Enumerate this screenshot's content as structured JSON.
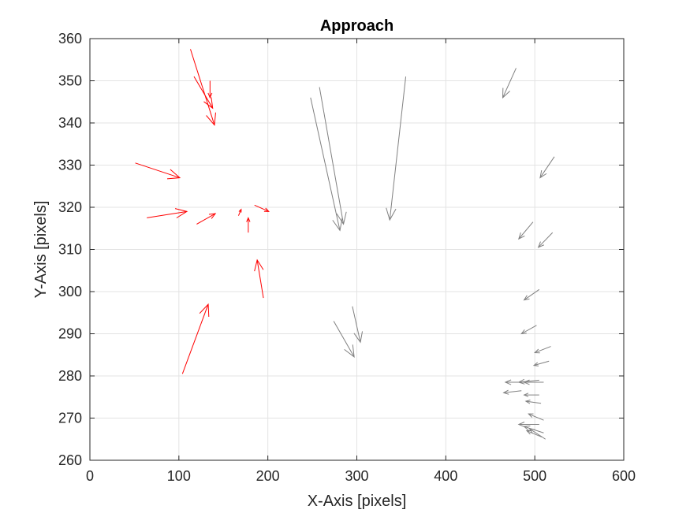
{
  "chart_data": {
    "type": "quiver",
    "title": "Approach",
    "xlabel": "X-Axis [pixels]",
    "ylabel": "Y-Axis [pixels]",
    "xlim": [
      0,
      600
    ],
    "ylim": [
      260,
      360
    ],
    "xticks": [
      "0",
      "100",
      "200",
      "300",
      "400",
      "500",
      "600"
    ],
    "yticks": [
      "260",
      "270",
      "280",
      "290",
      "300",
      "310",
      "320",
      "330",
      "340",
      "350",
      "360"
    ],
    "grid": true,
    "series": [
      {
        "color": "#ff0000",
        "vectors": [
          {
            "x1": 113,
            "y1": 357.5,
            "x2": 140,
            "y2": 339.5
          },
          {
            "x1": 117,
            "y1": 351,
            "x2": 138,
            "y2": 343.5
          },
          {
            "x1": 135,
            "y1": 350,
            "x2": 135,
            "y2": 346
          },
          {
            "x1": 51,
            "y1": 330.5,
            "x2": 101,
            "y2": 327
          },
          {
            "x1": 64,
            "y1": 317.5,
            "x2": 109,
            "y2": 319
          },
          {
            "x1": 120,
            "y1": 316,
            "x2": 141,
            "y2": 318.5
          },
          {
            "x1": 167,
            "y1": 318,
            "x2": 170,
            "y2": 319.5
          },
          {
            "x1": 178,
            "y1": 314,
            "x2": 178,
            "y2": 317.5
          },
          {
            "x1": 185,
            "y1": 320.5,
            "x2": 201,
            "y2": 319
          },
          {
            "x1": 195,
            "y1": 298.5,
            "x2": 188,
            "y2": 307.5
          },
          {
            "x1": 104,
            "y1": 280.5,
            "x2": 133,
            "y2": 297
          }
        ]
      },
      {
        "color": "#808080",
        "vectors": [
          {
            "x1": 248,
            "y1": 346,
            "x2": 281,
            "y2": 314.5
          },
          {
            "x1": 258,
            "y1": 348.5,
            "x2": 285,
            "y2": 316
          },
          {
            "x1": 355,
            "y1": 351,
            "x2": 337,
            "y2": 317
          },
          {
            "x1": 479,
            "y1": 353,
            "x2": 464,
            "y2": 346
          },
          {
            "x1": 522,
            "y1": 332,
            "x2": 506,
            "y2": 327
          },
          {
            "x1": 498,
            "y1": 316.5,
            "x2": 482,
            "y2": 312.5
          },
          {
            "x1": 520,
            "y1": 314,
            "x2": 504,
            "y2": 310.5
          },
          {
            "x1": 505,
            "y1": 300.5,
            "x2": 488,
            "y2": 298
          },
          {
            "x1": 502,
            "y1": 292,
            "x2": 485,
            "y2": 290
          },
          {
            "x1": 295,
            "y1": 296.5,
            "x2": 304,
            "y2": 288
          },
          {
            "x1": 274,
            "y1": 293,
            "x2": 297,
            "y2": 284.5
          },
          {
            "x1": 518,
            "y1": 287,
            "x2": 500,
            "y2": 285.5
          },
          {
            "x1": 516,
            "y1": 283.5,
            "x2": 499,
            "y2": 282.5
          },
          {
            "x1": 505,
            "y1": 279,
            "x2": 482,
            "y2": 278.5
          },
          {
            "x1": 490,
            "y1": 278.5,
            "x2": 467,
            "y2": 278.5
          },
          {
            "x1": 510,
            "y1": 278.5,
            "x2": 488,
            "y2": 278.5
          },
          {
            "x1": 485,
            "y1": 276.5,
            "x2": 465,
            "y2": 276
          },
          {
            "x1": 505,
            "y1": 275.5,
            "x2": 488,
            "y2": 275.5
          },
          {
            "x1": 507,
            "y1": 273.5,
            "x2": 490,
            "y2": 274
          },
          {
            "x1": 510,
            "y1": 269.5,
            "x2": 493,
            "y2": 271
          },
          {
            "x1": 505,
            "y1": 268.5,
            "x2": 482,
            "y2": 268.5
          },
          {
            "x1": 510,
            "y1": 266.5,
            "x2": 488,
            "y2": 268
          },
          {
            "x1": 508,
            "y1": 265.5,
            "x2": 491,
            "y2": 267
          },
          {
            "x1": 512,
            "y1": 265,
            "x2": 494,
            "y2": 267.5
          }
        ]
      }
    ]
  }
}
